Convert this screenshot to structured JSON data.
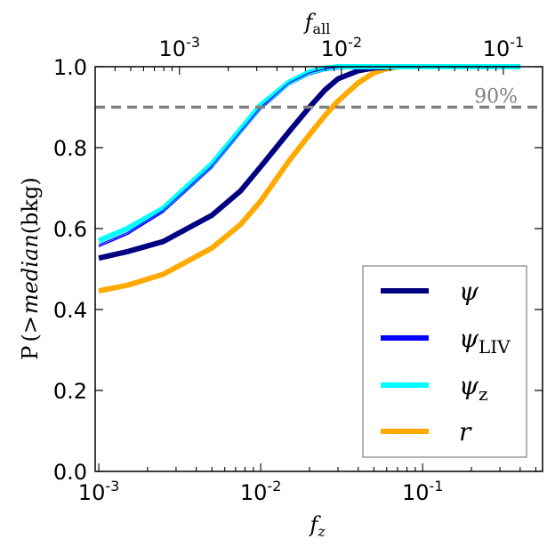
{
  "chart_data": {
    "type": "line",
    "x_scale": "log",
    "y_scale": "linear",
    "xlim": [
      0.00095,
      0.55
    ],
    "ylim": [
      0.0,
      1.0
    ],
    "xlabel": "f_z",
    "ylabel": "P (>median(bkg)",
    "top_xlabel": "f_all",
    "x_ticks": [
      {
        "value": 0.001,
        "base": "10",
        "exp": "-3"
      },
      {
        "value": 0.01,
        "base": "10",
        "exp": "-2"
      },
      {
        "value": 0.1,
        "base": "10",
        "exp": "-1"
      }
    ],
    "top_x_ticks": [
      {
        "fz": 0.00315,
        "base": "10",
        "exp": "-3"
      },
      {
        "fz": 0.0315,
        "base": "10",
        "exp": "-2"
      },
      {
        "fz": 0.315,
        "base": "10",
        "exp": "-1"
      }
    ],
    "y_ticks": [
      "0.0",
      "0.2",
      "0.4",
      "0.6",
      "0.8",
      "1.0"
    ],
    "y_tick_values": [
      0.0,
      0.2,
      0.4,
      0.6,
      0.8,
      1.0
    ],
    "reference_line": {
      "y": 0.9,
      "label": "90%",
      "color": "#808080",
      "style": "dashed"
    },
    "legend_position": "lower-right",
    "series": [
      {
        "name": "ψ",
        "color": "#000080",
        "x": [
          0.001,
          0.0015,
          0.0025,
          0.005,
          0.0075,
          0.01,
          0.015,
          0.02,
          0.025,
          0.03,
          0.04,
          0.05,
          0.07,
          0.1,
          0.2,
          0.4
        ],
        "y": [
          0.527,
          0.543,
          0.568,
          0.633,
          0.693,
          0.753,
          0.84,
          0.9,
          0.943,
          0.97,
          0.99,
          0.997,
          1.0,
          1.0,
          1.0,
          1.0
        ]
      },
      {
        "name": "ψLIV",
        "name_base": "ψ",
        "name_sub": "LIV",
        "color": "#0000ff",
        "x": [
          0.001,
          0.0015,
          0.0025,
          0.005,
          0.0075,
          0.01,
          0.015,
          0.02,
          0.025,
          0.03,
          0.04,
          0.05,
          0.07,
          0.1,
          0.2,
          0.4
        ],
        "y": [
          0.56,
          0.59,
          0.645,
          0.755,
          0.84,
          0.9,
          0.96,
          0.985,
          0.995,
          0.999,
          1.0,
          1.0,
          1.0,
          1.0,
          1.0,
          1.0
        ]
      },
      {
        "name": "ψz",
        "name_base": "ψ",
        "name_sub": "z",
        "color": "#00ffff",
        "x": [
          0.001,
          0.0015,
          0.0025,
          0.005,
          0.0075,
          0.01,
          0.015,
          0.02,
          0.025,
          0.03,
          0.04,
          0.05,
          0.07,
          0.1,
          0.2,
          0.4
        ],
        "y": [
          0.57,
          0.6,
          0.65,
          0.76,
          0.845,
          0.905,
          0.962,
          0.987,
          0.996,
          1.0,
          1.0,
          1.0,
          1.0,
          1.0,
          1.0,
          1.0
        ]
      },
      {
        "name": "r",
        "color": "#ffaa00",
        "x": [
          0.001,
          0.0015,
          0.0025,
          0.005,
          0.0075,
          0.01,
          0.015,
          0.02,
          0.025,
          0.03,
          0.04,
          0.05,
          0.06,
          0.07,
          0.1,
          0.2,
          0.4
        ],
        "y": [
          0.446,
          0.46,
          0.487,
          0.552,
          0.61,
          0.668,
          0.768,
          0.832,
          0.88,
          0.915,
          0.96,
          0.985,
          0.995,
          1.0,
          1.0,
          1.0,
          1.0
        ]
      }
    ]
  }
}
